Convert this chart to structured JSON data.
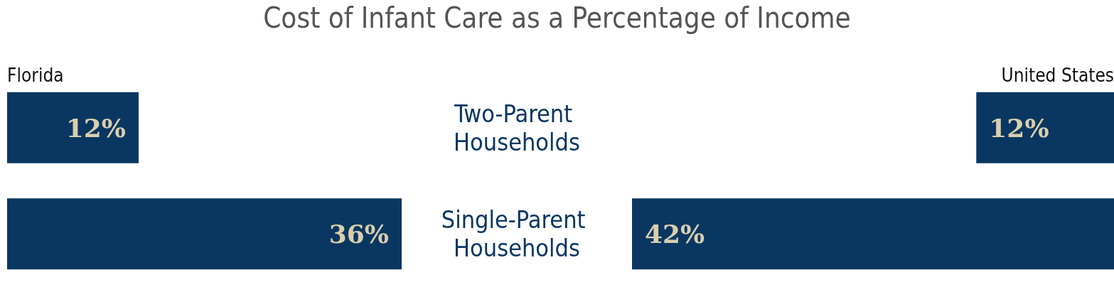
{
  "chart_data": [
    {
      "type": "bar",
      "orientation": "horizontal",
      "title": "Cost of Infant Care as a Percentage of Income",
      "categories": [
        "Two-Parent Households",
        "Single-Parent Households"
      ],
      "tick_labels": false,
      "xlim": [
        0,
        36
      ],
      "series": [
        {
          "name": "Florida",
          "color": "#0a3761",
          "values": [
            12,
            36
          ],
          "value_labels": [
            "12%",
            "36%"
          ]
        }
      ]
    },
    {
      "type": "bar",
      "orientation": "horizontal",
      "categories": [
        "Two-Parent Households",
        "Single-Parent Households"
      ],
      "tick_labels": "y",
      "xlim": [
        42,
        0
      ],
      "series": [
        {
          "name": "United States",
          "color": "#0a3761",
          "values": [
            12,
            42
          ],
          "value_labels": [
            "12%",
            "42%"
          ]
        }
      ]
    }
  ]
}
